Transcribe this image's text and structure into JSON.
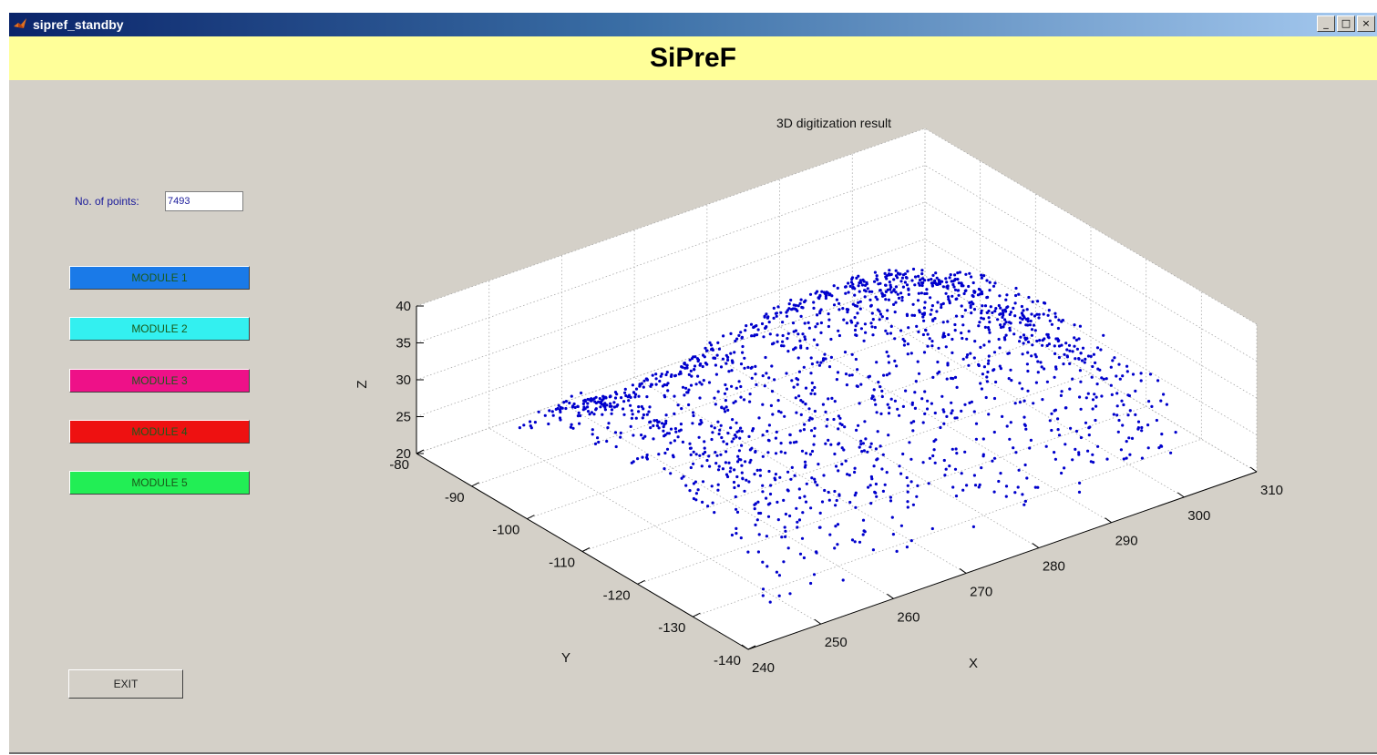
{
  "window": {
    "title": "sipref_standby",
    "controls": {
      "minimize": "_",
      "maximize": "□",
      "close": "×"
    }
  },
  "banner": {
    "title": "SiPreF"
  },
  "points": {
    "label": "No. of points:",
    "value": "7493"
  },
  "modules": [
    {
      "label": "MODULE 1",
      "color": "#1a7ae8"
    },
    {
      "label": "MODULE 2",
      "color": "#33f0f0"
    },
    {
      "label": "MODULE 3",
      "color": "#ee1188"
    },
    {
      "label": "MODULE 4",
      "color": "#ee1111"
    },
    {
      "label": "MODULE 5",
      "color": "#22ee55"
    }
  ],
  "exit": {
    "label": "EXIT"
  },
  "colors": {
    "points": "#0000cc",
    "banner": "#ffff99",
    "panel": "#d4d0c8"
  },
  "chart_data": {
    "type": "scatter",
    "projection": "3d",
    "title": "3D digitization result",
    "xlabel": "X",
    "ylabel": "Y",
    "zlabel": "Z",
    "xlim": [
      240,
      310
    ],
    "ylim": [
      -140,
      -80
    ],
    "zlim": [
      20,
      40
    ],
    "xticks": [
      "240",
      "250",
      "260",
      "270",
      "280",
      "290",
      "300",
      "310"
    ],
    "yticks": [
      "-80",
      "-90",
      "-100",
      "-110",
      "-120",
      "-130",
      "-140"
    ],
    "zticks": [
      "20",
      "25",
      "30",
      "35",
      "40"
    ],
    "grid": true,
    "point_count": 7493,
    "series": [
      {
        "color": "#0000cc"
      }
    ]
  }
}
